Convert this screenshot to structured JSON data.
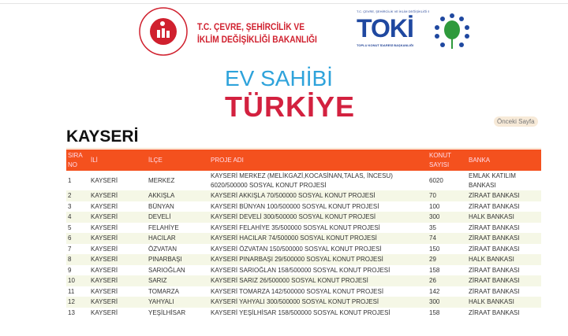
{
  "header": {
    "ministry": "T.C. ÇEVRE, ŞEHİRCİLİK VE İKLİM DEĞİŞİKLİĞİ BAKANLIĞI",
    "ministry_line1": "T.C. ÇEVRE, ŞEHİRCİLİK VE",
    "ministry_line2": "İKLİM DEĞİŞİKLİĞİ BAKANLIĞI",
    "toki_small": "T.C. ÇEVRE, ŞEHİRCİLİK VE İKLİM DEĞİŞİKLİĞİ BAKANLIĞI",
    "toki": "TOKİ",
    "toki_sub": "TOPLU KONUT İDARESİ BAŞKANLIĞI",
    "campaign_line1": "EV SAHİBİ",
    "campaign_line2": "TÜRKİYE"
  },
  "nav": {
    "prev_label": "Önceki Sayfa"
  },
  "page_title": "KAYSERİ",
  "colors": {
    "header": "#f4511e",
    "stripe": "#f5f7e6",
    "ministry": "#d0202e",
    "toki": "#1f48a0"
  },
  "table": {
    "columns": [
      "SIRA NO",
      "İLİ",
      "İLÇE",
      "PROJE ADI",
      "KONUT SAYISI",
      "BANKA"
    ],
    "rows": [
      [
        "1",
        "KAYSERİ",
        "MERKEZ",
        "KAYSERİ MERKEZ (MELİKGAZİ,KOCASİNAN,TALAS, İNCESU) 6020/500000 SOSYAL KONUT PROJESİ",
        "6020",
        "EMLAK KATILIM BANKASI"
      ],
      [
        "2",
        "KAYSERİ",
        "AKKIŞLA",
        "KAYSERİ AKKIŞLA 70/500000 SOSYAL KONUT PROJESİ",
        "70",
        "ZİRAAT BANKASI"
      ],
      [
        "3",
        "KAYSERİ",
        "BÜNYAN",
        "KAYSERİ BÜNYAN 100/500000 SOSYAL KONUT PROJESİ",
        "100",
        "ZİRAAT BANKASI"
      ],
      [
        "4",
        "KAYSERİ",
        "DEVELİ",
        "KAYSERİ DEVELİ 300/500000 SOSYAL KONUT PROJESİ",
        "300",
        "HALK BANKASI"
      ],
      [
        "5",
        "KAYSERİ",
        "FELAHİYE",
        "KAYSERİ FELAHİYE 35/500000 SOSYAL KONUT PROJESİ",
        "35",
        "ZİRAAT BANKASI"
      ],
      [
        "6",
        "KAYSERİ",
        "HACILAR",
        "KAYSERİ HACILAR 74/500000 SOSYAL KONUT PROJESİ",
        "74",
        "ZİRAAT BANKASI"
      ],
      [
        "7",
        "KAYSERİ",
        "ÖZVATAN",
        "KAYSERİ ÖZVATAN 150/500000 SOSYAL KONUT PROJESİ",
        "150",
        "ZİRAAT BANKASI"
      ],
      [
        "8",
        "KAYSERİ",
        "PINARBAŞI",
        "KAYSERİ PINARBAŞI 29/500000 SOSYAL KONUT PROJESİ",
        "29",
        "HALK BANKASI"
      ],
      [
        "9",
        "KAYSERİ",
        "SARIOĞLAN",
        "KAYSERİ SARIOĞLAN 158/500000 SOSYAL KONUT PROJESİ",
        "158",
        "ZİRAAT BANKASI"
      ],
      [
        "10",
        "KAYSERİ",
        "SARIZ",
        "KAYSERİ SARIZ 26/500000 SOSYAL KONUT PROJESİ",
        "26",
        "ZİRAAT BANKASI"
      ],
      [
        "11",
        "KAYSERİ",
        "TOMARZA",
        "KAYSERİ TOMARZA 142/500000 SOSYAL KONUT PROJESİ",
        "142",
        "ZİRAAT BANKASI"
      ],
      [
        "12",
        "KAYSERİ",
        "YAHYALI",
        "KAYSERİ YAHYALI 300/500000 SOSYAL KONUT PROJESİ",
        "300",
        "HALK BANKASI"
      ],
      [
        "13",
        "KAYSERİ",
        "YEŞİLHİSAR",
        "KAYSERİ YEŞİLHİSAR 158/500000 SOSYAL KONUT PROJESİ",
        "158",
        "ZİRAAT BANKASI"
      ]
    ]
  }
}
